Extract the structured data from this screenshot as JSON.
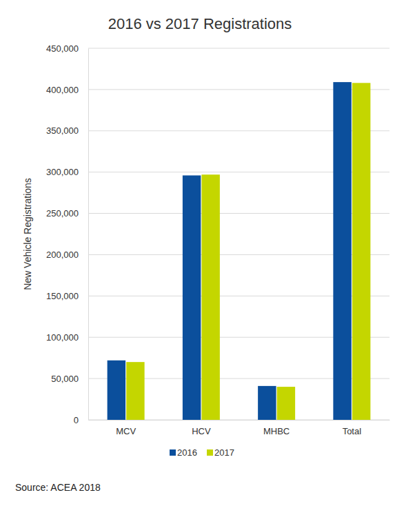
{
  "chart_data": {
    "type": "bar",
    "title": "2016 vs 2017 Registrations",
    "y_label": "New Vehicle Registrations",
    "source": "Source: ACEA 2018",
    "categories": [
      "MCV",
      "HCV",
      "MHBC",
      "Total"
    ],
    "series": [
      {
        "name": "2016",
        "color": "#0b4f9c",
        "values": [
          72000,
          296000,
          41000,
          409000
        ]
      },
      {
        "name": "2017",
        "color": "#c4d600",
        "values": [
          70000,
          297000,
          40000,
          408000
        ]
      }
    ],
    "ylim": [
      0,
      450000
    ],
    "yticks": [
      0,
      {
        "value": 50000,
        "label": "50,000"
      },
      {
        "value": 100000,
        "label": "100,000"
      },
      {
        "value": 150000,
        "label": "150,000"
      },
      {
        "value": 200000,
        "label": "200,000"
      },
      {
        "value": 250000,
        "label": "250,000"
      },
      {
        "value": 300000,
        "label": "300,000"
      },
      {
        "value": 350000,
        "label": "350,000"
      },
      {
        "value": 400000,
        "label": "400,000"
      },
      {
        "value": 450000,
        "label": "450,000"
      }
    ],
    "grid": true,
    "legend": "bottom"
  }
}
